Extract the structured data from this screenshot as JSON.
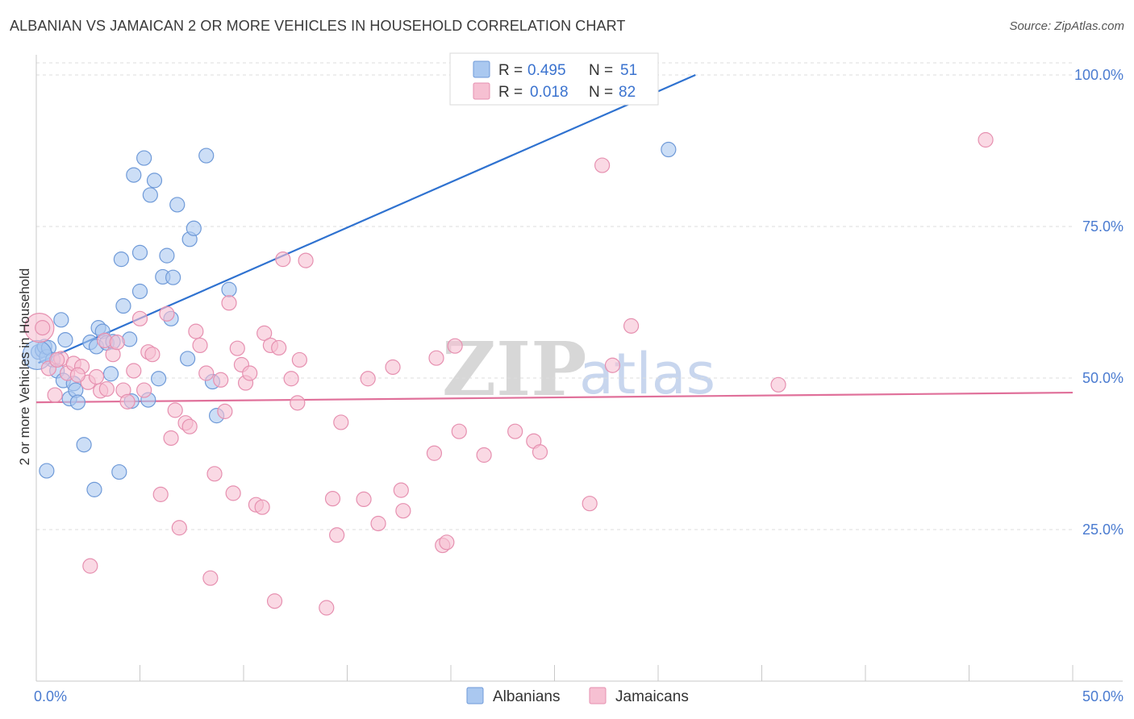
{
  "title": "ALBANIAN VS JAMAICAN 2 OR MORE VEHICLES IN HOUSEHOLD CORRELATION CHART",
  "source": "Source: ZipAtlas.com",
  "watermark": {
    "zip": "ZIP",
    "atlas": "atlas"
  },
  "colors": {
    "blue_fill": "#aac8f0",
    "blue_stroke": "#6f9ad8",
    "blue_line": "#2f72d0",
    "pink_fill": "#f6c0d2",
    "pink_stroke": "#e690b0",
    "pink_line": "#e0709a",
    "grid": "#dddddd",
    "tick_text": "#4a7bd0"
  },
  "legend": {
    "rows": [
      {
        "r_label": "R =",
        "r_value": "0.495",
        "n_label": "N =",
        "n_value": "51"
      },
      {
        "r_label": "R =",
        "r_value": "0.018",
        "n_label": "N =",
        "n_value": "82"
      }
    ]
  },
  "bottom_legend": [
    "Albanians",
    "Jamaicans"
  ],
  "chart_data": {
    "type": "scatter",
    "title": "ALBANIAN VS JAMAICAN 2 OR MORE VEHICLES IN HOUSEHOLD CORRELATION CHART",
    "xlabel": "",
    "ylabel": "2 or more Vehicles in Household",
    "xlim": [
      0,
      50
    ],
    "ylim": [
      0,
      102
    ],
    "x_tick_labels": [
      {
        "value": 0,
        "label": "0.0%"
      },
      {
        "value": 50,
        "label": "50.0%"
      }
    ],
    "y_tick_labels": [
      {
        "value": 25,
        "label": "25.0%"
      },
      {
        "value": 50,
        "label": "50.0%"
      },
      {
        "value": 75,
        "label": "75.0%"
      },
      {
        "value": 100,
        "label": "100.0%"
      }
    ],
    "series": [
      {
        "name": "Albanians",
        "r": 0.495,
        "n": 51,
        "trend": {
          "x0": 0.1,
          "y0": 52.5,
          "x1": 31.8,
          "y1": 100
        },
        "points": [
          [
            0.1,
            54.3
          ],
          [
            0.3,
            54.6
          ],
          [
            0.4,
            55.2
          ],
          [
            0.5,
            53.5
          ],
          [
            0.5,
            34.7
          ],
          [
            0.6,
            55.0
          ],
          [
            0.8,
            53.0
          ],
          [
            1.0,
            51.2
          ],
          [
            1.2,
            59.6
          ],
          [
            1.3,
            49.6
          ],
          [
            1.4,
            56.3
          ],
          [
            1.6,
            46.6
          ],
          [
            1.8,
            49.1
          ],
          [
            1.9,
            48.0
          ],
          [
            2.0,
            46.0
          ],
          [
            2.3,
            39.0
          ],
          [
            2.6,
            55.9
          ],
          [
            2.8,
            31.6
          ],
          [
            2.9,
            55.2
          ],
          [
            3.0,
            58.3
          ],
          [
            3.2,
            57.7
          ],
          [
            3.4,
            55.8
          ],
          [
            3.6,
            50.7
          ],
          [
            3.7,
            56.0
          ],
          [
            4.0,
            34.5
          ],
          [
            4.1,
            69.6
          ],
          [
            4.2,
            61.9
          ],
          [
            4.5,
            56.4
          ],
          [
            4.6,
            46.2
          ],
          [
            4.7,
            83.5
          ],
          [
            5.0,
            70.7
          ],
          [
            5.0,
            64.3
          ],
          [
            5.2,
            86.3
          ],
          [
            5.4,
            46.4
          ],
          [
            5.5,
            80.2
          ],
          [
            5.7,
            82.6
          ],
          [
            5.9,
            49.9
          ],
          [
            6.1,
            66.7
          ],
          [
            6.3,
            70.2
          ],
          [
            6.5,
            59.8
          ],
          [
            6.6,
            66.6
          ],
          [
            6.8,
            78.6
          ],
          [
            7.3,
            53.2
          ],
          [
            7.4,
            72.9
          ],
          [
            7.6,
            74.7
          ],
          [
            8.2,
            86.7
          ],
          [
            8.5,
            49.4
          ],
          [
            8.7,
            43.8
          ],
          [
            9.3,
            64.6
          ],
          [
            30.5,
            87.7
          ],
          [
            0.05,
            53.8
          ]
        ]
      },
      {
        "name": "Jamaicans",
        "r": 0.018,
        "n": 82,
        "trend": {
          "x0": 0,
          "y0": 46.0,
          "x1": 50,
          "y1": 47.6
        },
        "points": [
          [
            0.15,
            58.3
          ],
          [
            0.6,
            51.6
          ],
          [
            0.9,
            47.2
          ],
          [
            1.2,
            53.2
          ],
          [
            1.5,
            50.8
          ],
          [
            1.8,
            52.4
          ],
          [
            2.2,
            51.9
          ],
          [
            2.5,
            49.3
          ],
          [
            2.6,
            19.0
          ],
          [
            2.9,
            50.2
          ],
          [
            3.1,
            47.9
          ],
          [
            3.3,
            56.2
          ],
          [
            3.4,
            48.2
          ],
          [
            3.7,
            53.9
          ],
          [
            3.9,
            55.9
          ],
          [
            4.2,
            48.0
          ],
          [
            4.4,
            46.1
          ],
          [
            4.7,
            51.2
          ],
          [
            5.0,
            59.8
          ],
          [
            5.2,
            48.0
          ],
          [
            5.4,
            54.3
          ],
          [
            5.6,
            53.9
          ],
          [
            6.0,
            30.8
          ],
          [
            6.3,
            60.6
          ],
          [
            6.5,
            40.1
          ],
          [
            6.7,
            44.7
          ],
          [
            6.9,
            25.3
          ],
          [
            7.2,
            42.6
          ],
          [
            7.4,
            42.0
          ],
          [
            7.7,
            57.7
          ],
          [
            7.9,
            55.4
          ],
          [
            8.2,
            50.8
          ],
          [
            8.4,
            17.0
          ],
          [
            8.6,
            34.2
          ],
          [
            8.9,
            49.7
          ],
          [
            9.1,
            44.5
          ],
          [
            9.3,
            62.4
          ],
          [
            9.5,
            31.0
          ],
          [
            9.7,
            54.9
          ],
          [
            9.9,
            52.2
          ],
          [
            10.1,
            49.2
          ],
          [
            10.3,
            50.8
          ],
          [
            10.6,
            29.1
          ],
          [
            10.9,
            28.7
          ],
          [
            11.0,
            57.4
          ],
          [
            11.3,
            55.4
          ],
          [
            11.5,
            13.2
          ],
          [
            11.7,
            55.0
          ],
          [
            11.9,
            69.6
          ],
          [
            12.3,
            49.9
          ],
          [
            12.6,
            45.9
          ],
          [
            12.7,
            53.0
          ],
          [
            13.0,
            69.4
          ],
          [
            14.0,
            12.1
          ],
          [
            14.3,
            30.1
          ],
          [
            14.5,
            24.1
          ],
          [
            14.7,
            42.7
          ],
          [
            15.8,
            30.0
          ],
          [
            16.0,
            49.9
          ],
          [
            16.5,
            26.0
          ],
          [
            17.2,
            51.8
          ],
          [
            17.6,
            31.5
          ],
          [
            17.7,
            28.1
          ],
          [
            19.2,
            37.6
          ],
          [
            19.3,
            53.3
          ],
          [
            19.6,
            22.4
          ],
          [
            19.8,
            22.9
          ],
          [
            20.2,
            55.3
          ],
          [
            20.4,
            41.2
          ],
          [
            21.6,
            37.3
          ],
          [
            23.1,
            41.2
          ],
          [
            24.0,
            39.6
          ],
          [
            24.3,
            37.8
          ],
          [
            26.7,
            29.3
          ],
          [
            27.3,
            85.1
          ],
          [
            27.8,
            52.1
          ],
          [
            28.7,
            58.6
          ],
          [
            35.8,
            48.9
          ],
          [
            45.8,
            89.3
          ],
          [
            0.3,
            58.3
          ],
          [
            1.0,
            53.0
          ],
          [
            2.0,
            50.5
          ]
        ]
      }
    ]
  }
}
